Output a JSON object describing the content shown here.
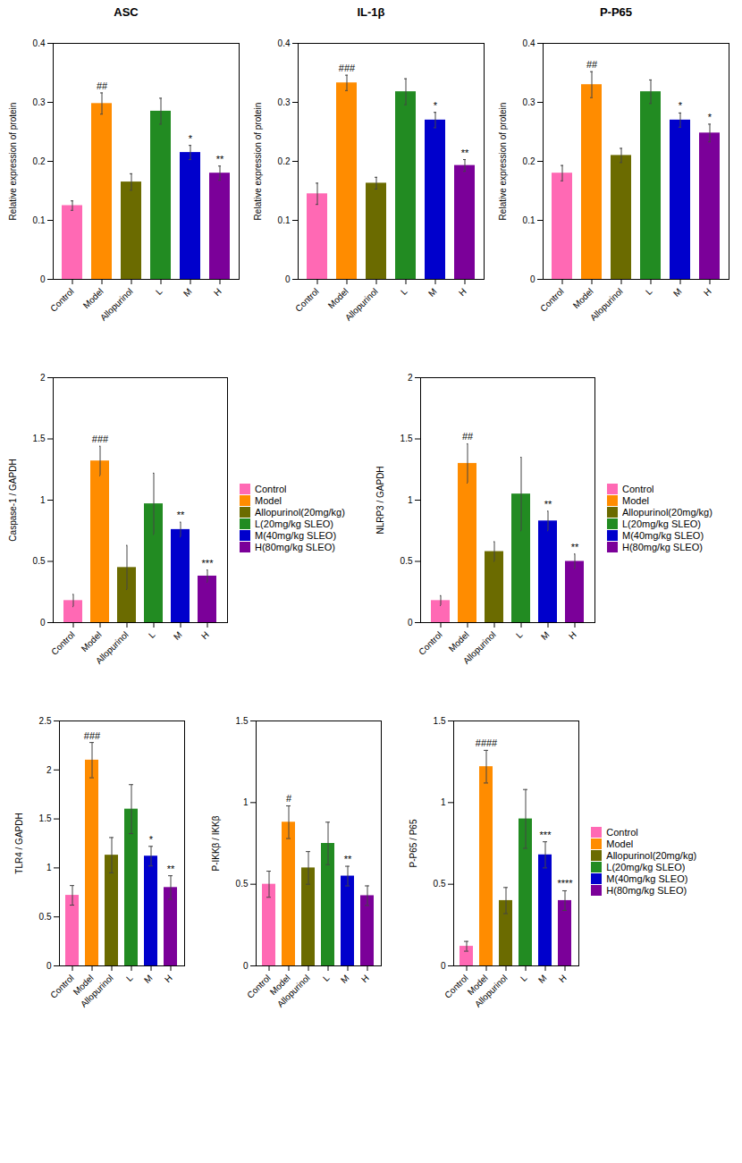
{
  "chart_data": [
    {
      "type": "bar",
      "title": "ASC",
      "ylabel": "Relative expression of protein",
      "categories": [
        "Control",
        "Model",
        "Allopurinol",
        "L",
        "M",
        "H"
      ],
      "values": [
        0.125,
        0.298,
        0.165,
        0.285,
        0.215,
        0.18
      ],
      "errors": [
        0.008,
        0.018,
        0.014,
        0.022,
        0.012,
        0.012
      ],
      "colors": [
        "#FF69B4",
        "#FF8C00",
        "#6B6B00",
        "#228B22",
        "#0000CC",
        "#7B0099"
      ],
      "annotations": [
        null,
        "##",
        null,
        null,
        "*",
        "**"
      ],
      "ylim": [
        0,
        0.4
      ],
      "yticks": [
        0,
        0.1,
        0.2,
        0.3,
        0.4
      ]
    },
    {
      "type": "bar",
      "title": "IL-1β",
      "ylabel": "Relative expression of protein",
      "categories": [
        "Control",
        "Model",
        "Allopurinol",
        "L",
        "M",
        "H"
      ],
      "values": [
        0.145,
        0.333,
        0.163,
        0.318,
        0.27,
        0.193
      ],
      "errors": [
        0.018,
        0.013,
        0.01,
        0.022,
        0.013,
        0.01
      ],
      "colors": [
        "#FF69B4",
        "#FF8C00",
        "#6B6B00",
        "#228B22",
        "#0000CC",
        "#7B0099"
      ],
      "annotations": [
        null,
        "###",
        null,
        null,
        "*",
        "**"
      ],
      "ylim": [
        0,
        0.4
      ],
      "yticks": [
        0,
        0.1,
        0.2,
        0.3,
        0.4
      ]
    },
    {
      "type": "bar",
      "title": "P-P65",
      "ylabel": "Relative expression of protein",
      "categories": [
        "Control",
        "Model",
        "Allopurinol",
        "L",
        "M",
        "H"
      ],
      "values": [
        0.18,
        0.33,
        0.21,
        0.318,
        0.27,
        0.248
      ],
      "errors": [
        0.013,
        0.022,
        0.012,
        0.02,
        0.012,
        0.015
      ],
      "colors": [
        "#FF69B4",
        "#FF8C00",
        "#6B6B00",
        "#228B22",
        "#0000CC",
        "#7B0099"
      ],
      "annotations": [
        null,
        "##",
        null,
        null,
        "*",
        "*"
      ],
      "ylim": [
        0,
        0.4
      ],
      "yticks": [
        0,
        0.1,
        0.2,
        0.3,
        0.4
      ]
    },
    {
      "type": "bar",
      "ylabel": "Caspase-1 / GAPDH",
      "legend": "right",
      "categories": [
        "Control",
        "Model",
        "Allopurinol",
        "L",
        "M",
        "H"
      ],
      "series": [
        {
          "name": "Control",
          "color": "#FF69B4",
          "values": [
            0.18,
            null,
            null,
            null,
            null,
            null
          ],
          "errors": [
            0.05,
            null,
            null,
            null,
            null,
            null
          ]
        },
        {
          "name": "Model",
          "color": "#FF8C00",
          "values": [
            null,
            1.32,
            null,
            null,
            null,
            null
          ],
          "errors": [
            null,
            0.12,
            null,
            null,
            null,
            null
          ]
        },
        {
          "name": "Allopurinol(20mg/kg)",
          "color": "#6B6B00",
          "values": [
            null,
            null,
            0.45,
            null,
            null,
            null
          ],
          "errors": [
            null,
            null,
            0.18,
            null,
            null,
            null
          ]
        },
        {
          "name": "L(20mg/kg SLEO)",
          "color": "#228B22",
          "values": [
            null,
            null,
            null,
            0.97,
            null,
            null
          ],
          "errors": [
            null,
            null,
            null,
            0.25,
            null,
            null
          ]
        },
        {
          "name": "M(40mg/kg SLEO)",
          "color": "#0000CC",
          "values": [
            null,
            null,
            null,
            null,
            0.76,
            null
          ],
          "errors": [
            null,
            null,
            null,
            null,
            0.06,
            null
          ]
        },
        {
          "name": "H(80mg/kg SLEO)",
          "color": "#7B0099",
          "values": [
            null,
            null,
            null,
            null,
            null,
            0.38
          ],
          "errors": [
            null,
            null,
            null,
            null,
            null,
            0.05
          ]
        }
      ],
      "annotations": [
        null,
        "###",
        null,
        null,
        "**",
        "***"
      ],
      "ylim": [
        0,
        2.0
      ],
      "yticks": [
        0,
        0.5,
        1,
        1.5,
        2
      ]
    },
    {
      "type": "bar",
      "ylabel": "NLRP3 / GAPDH",
      "legend": "right",
      "categories": [
        "Control",
        "Model",
        "Allopurinol",
        "L",
        "M",
        "H"
      ],
      "series": [
        {
          "name": "Control",
          "color": "#FF69B4",
          "values": [
            0.18,
            null,
            null,
            null,
            null,
            null
          ],
          "errors": [
            0.04,
            null,
            null,
            null,
            null,
            null
          ]
        },
        {
          "name": "Model",
          "color": "#FF8C00",
          "values": [
            null,
            1.3,
            null,
            null,
            null,
            null
          ],
          "errors": [
            null,
            0.16,
            null,
            null,
            null,
            null
          ]
        },
        {
          "name": "Allopurinol(20mg/kg)",
          "color": "#6B6B00",
          "values": [
            null,
            null,
            0.58,
            null,
            null,
            null
          ],
          "errors": [
            null,
            null,
            0.08,
            null,
            null,
            null
          ]
        },
        {
          "name": "L(20mg/kg SLEO)",
          "color": "#228B22",
          "values": [
            null,
            null,
            null,
            1.05,
            null,
            null
          ],
          "errors": [
            null,
            null,
            null,
            0.3,
            null,
            null
          ]
        },
        {
          "name": "M(40mg/kg SLEO)",
          "color": "#0000CC",
          "values": [
            null,
            null,
            null,
            null,
            0.83,
            null
          ],
          "errors": [
            null,
            null,
            null,
            null,
            0.08,
            null
          ]
        },
        {
          "name": "H(80mg/kg SLEO)",
          "color": "#7B0099",
          "values": [
            null,
            null,
            null,
            null,
            null,
            0.5
          ],
          "errors": [
            null,
            null,
            null,
            null,
            null,
            0.06
          ]
        }
      ],
      "annotations": [
        null,
        "##",
        null,
        null,
        "**",
        "**"
      ],
      "ylim": [
        0,
        2.0
      ],
      "yticks": [
        0,
        0.5,
        1,
        1.5,
        2
      ]
    },
    {
      "type": "bar",
      "ylabel": "TLR4 / GAPDH",
      "categories": [
        "Control",
        "Model",
        "Allopurinol",
        "L",
        "M",
        "H"
      ],
      "values": [
        0.72,
        2.1,
        1.13,
        1.6,
        1.12,
        0.8
      ],
      "errors": [
        0.1,
        0.18,
        0.18,
        0.25,
        0.1,
        0.12
      ],
      "colors": [
        "#FF69B4",
        "#FF8C00",
        "#6B6B00",
        "#228B22",
        "#0000CC",
        "#7B0099"
      ],
      "annotations": [
        null,
        "###",
        null,
        null,
        "*",
        "**"
      ],
      "ylim": [
        0,
        2.5
      ],
      "yticks": [
        0,
        0.5,
        1,
        1.5,
        2,
        2.5
      ]
    },
    {
      "type": "bar",
      "ylabel": "P-IKKβ / IKKβ",
      "categories": [
        "Control",
        "Model",
        "Allopurinol",
        "L",
        "M",
        "H"
      ],
      "values": [
        0.5,
        0.88,
        0.6,
        0.75,
        0.55,
        0.43
      ],
      "errors": [
        0.08,
        0.1,
        0.1,
        0.13,
        0.06,
        0.06
      ],
      "colors": [
        "#FF69B4",
        "#FF8C00",
        "#6B6B00",
        "#228B22",
        "#0000CC",
        "#7B0099"
      ],
      "annotations": [
        null,
        "#",
        null,
        null,
        "**",
        null
      ],
      "ylim": [
        0,
        1.5
      ],
      "yticks": [
        0,
        0.5,
        1,
        1.5
      ]
    },
    {
      "type": "bar",
      "ylabel": "P-P65 / P65",
      "legend": "right",
      "categories": [
        "Control",
        "Model",
        "Allopurinol",
        "L",
        "M",
        "H"
      ],
      "series": [
        {
          "name": "Control",
          "color": "#FF69B4",
          "values": [
            0.12,
            null,
            null,
            null,
            null,
            null
          ],
          "errors": [
            0.03,
            null,
            null,
            null,
            null,
            null
          ]
        },
        {
          "name": "Model",
          "color": "#FF8C00",
          "values": [
            null,
            1.22,
            null,
            null,
            null,
            null
          ],
          "errors": [
            null,
            0.1,
            null,
            null,
            null,
            null
          ]
        },
        {
          "name": "Allopurinol(20mg/kg)",
          "color": "#6B6B00",
          "values": [
            null,
            null,
            0.4,
            null,
            null,
            null
          ],
          "errors": [
            null,
            null,
            0.08,
            null,
            null,
            null
          ]
        },
        {
          "name": "L(20mg/kg SLEO)",
          "color": "#228B22",
          "values": [
            null,
            null,
            null,
            0.9,
            null,
            null
          ],
          "errors": [
            null,
            null,
            null,
            0.18,
            null,
            null
          ]
        },
        {
          "name": "M(40mg/kg SLEO)",
          "color": "#0000CC",
          "values": [
            null,
            null,
            null,
            null,
            0.68,
            null
          ],
          "errors": [
            null,
            null,
            null,
            null,
            0.08,
            null
          ]
        },
        {
          "name": "H(80mg/kg SLEO)",
          "color": "#7B0099",
          "values": [
            null,
            null,
            null,
            null,
            null,
            0.4
          ],
          "errors": [
            null,
            null,
            null,
            null,
            null,
            0.06
          ]
        }
      ],
      "annotations": [
        null,
        "####",
        null,
        null,
        "***",
        "****"
      ],
      "ylim": [
        0,
        1.5
      ],
      "yticks": [
        0,
        0.5,
        1,
        1.5
      ]
    }
  ]
}
